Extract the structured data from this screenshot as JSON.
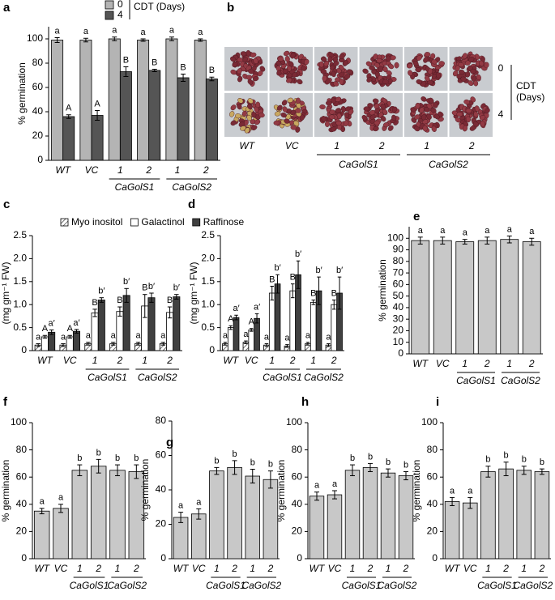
{
  "chart_data": [
    {
      "type": "bar",
      "panel": "a",
      "ylabel": "% germination",
      "legend_title": "CDT (Days)",
      "categories": [
        "WT",
        "VC",
        "1",
        "2",
        "1",
        "2"
      ],
      "groups": [
        "CaGolS1",
        "CaGolS2"
      ],
      "ylim": [
        0,
        110
      ],
      "yticks": [
        0,
        20,
        40,
        60,
        80,
        100
      ],
      "series": [
        {
          "name": "0",
          "color": "#b4b4b4",
          "values": [
            99,
            99,
            100,
            99,
            100,
            99
          ],
          "errors": [
            2,
            1.5,
            1.5,
            1,
            1.5,
            1
          ],
          "letters": [
            "a",
            "a",
            "a",
            "a",
            "a",
            "a"
          ]
        },
        {
          "name": "4",
          "color": "#555555",
          "values": [
            36,
            37,
            73,
            74,
            68,
            67
          ],
          "errors": [
            1.5,
            4,
            4,
            1,
            3,
            1.5
          ],
          "letters": [
            "A",
            "A",
            "B",
            "B",
            "B",
            "B"
          ]
        }
      ]
    },
    {
      "type": "bar",
      "panel": "c",
      "ylabel": "(mg gm⁻¹ FW)",
      "categories": [
        "WT",
        "VC",
        "1",
        "2",
        "1",
        "2"
      ],
      "groups": [
        "CaGolS1",
        "CaGolS2"
      ],
      "ylim": [
        0,
        2.5
      ],
      "yticks": [
        0,
        0.5,
        {
          "value": 1,
          "label": "1.0"
        },
        1.5,
        {
          "value": 2,
          "label": "2.0"
        },
        2.5
      ],
      "series": [
        {
          "name": "Myo inositol",
          "color": "#ffffff",
          "hatch": true,
          "values": [
            0.12,
            0.12,
            0.15,
            0.15,
            0.15,
            0.15
          ],
          "errors": [
            0.03,
            0.03,
            0.03,
            0.03,
            0.03,
            0.03
          ],
          "letters": [
            "a",
            "a",
            "a",
            "a",
            "a",
            "a"
          ]
        },
        {
          "name": "Galactinol",
          "color": "#ffffff",
          "values": [
            0.3,
            0.3,
            0.82,
            0.85,
            0.97,
            0.83
          ],
          "errors": [
            0.03,
            0.03,
            0.08,
            0.1,
            0.25,
            0.12
          ],
          "letters": [
            "A",
            "A",
            "B",
            "B",
            "B",
            "B"
          ]
        },
        {
          "name": "Raffinose",
          "color": "#404040",
          "values": [
            0.4,
            0.42,
            1.1,
            1.2,
            1.15,
            1.17
          ],
          "errors": [
            0.05,
            0.04,
            0.05,
            0.15,
            0.1,
            0.05
          ],
          "letters": [
            "a′",
            "a′",
            "b′",
            "b′",
            "b′",
            "b′"
          ]
        }
      ]
    },
    {
      "type": "bar",
      "panel": "d",
      "ylabel": "(mg gm⁻¹ FW)",
      "categories": [
        "WT",
        "VC",
        "1",
        "2",
        "1",
        "2"
      ],
      "groups": [
        "CaGolS1",
        "CaGolS2"
      ],
      "ylim": [
        0,
        2.5
      ],
      "yticks": [
        0,
        0.5,
        {
          "value": 1,
          "label": "1.0"
        },
        1.5,
        {
          "value": 2,
          "label": "2.0"
        },
        2.5
      ],
      "series": [
        {
          "name": "Myo inositol",
          "color": "#ffffff",
          "hatch": true,
          "values": [
            0.15,
            0.18,
            0.12,
            0.1,
            0.15,
            0.12
          ],
          "errors": [
            0.03,
            0.03,
            0.03,
            0.03,
            0.03,
            0.03
          ],
          "letters": [
            "a",
            "a",
            "a",
            "a",
            "a",
            "a"
          ]
        },
        {
          "name": "Galactinol",
          "color": "#ffffff",
          "values": [
            0.5,
            0.45,
            1.25,
            1.3,
            1.05,
            1.0
          ],
          "errors": [
            0.04,
            0.03,
            0.15,
            0.15,
            0.05,
            0.1
          ],
          "letters": [
            "A",
            "A",
            "B",
            "B",
            "B",
            "B"
          ]
        },
        {
          "name": "Raffinose",
          "color": "#404040",
          "values": [
            0.72,
            0.7,
            1.45,
            1.65,
            1.3,
            1.25
          ],
          "errors": [
            0.05,
            0.1,
            0.2,
            0.3,
            0.3,
            0.35
          ],
          "letters": [
            "a′",
            "a′",
            "b′",
            "b′",
            "b′",
            "b′"
          ]
        }
      ]
    },
    {
      "type": "bar",
      "panel": "e",
      "ylabel": "% germination",
      "categories": [
        "WT",
        "VC",
        "1",
        "2",
        "1",
        "2"
      ],
      "groups": [
        "CaGolS1",
        "CaGolS2"
      ],
      "ylim": [
        0,
        110
      ],
      "yticks": [
        0,
        10,
        20,
        30,
        40,
        50,
        60,
        70,
        80,
        90,
        100
      ],
      "color": "#c8c8c8",
      "values": [
        98,
        98,
        97,
        98,
        99,
        97
      ],
      "errors": [
        3,
        3,
        2,
        3,
        3,
        3
      ],
      "letters": [
        "a",
        "a",
        "a",
        "a",
        "a",
        "a"
      ]
    },
    {
      "type": "bar",
      "panel": "f",
      "ylabel": "% germination",
      "categories": [
        "WT",
        "VC",
        "1",
        "2",
        "1",
        "2"
      ],
      "groups": [
        "CaGolS1",
        "CaGolS2"
      ],
      "ylim": [
        0,
        100
      ],
      "yticks": [
        0,
        20,
        40,
        60,
        80,
        100
      ],
      "color": "#c8c8c8",
      "values": [
        35,
        37,
        65,
        68,
        65,
        64
      ],
      "errors": [
        2,
        3,
        4,
        5,
        4,
        5
      ],
      "letters": [
        "a",
        "a",
        "b",
        "b",
        "b",
        "b"
      ]
    },
    {
      "type": "bar",
      "panel": "g",
      "ylabel": "% germination",
      "categories": [
        "WT",
        "VC",
        "1",
        "2",
        "1",
        "2"
      ],
      "groups": [
        "CaGolS1",
        "CaGolS2"
      ],
      "ylim": [
        0,
        80
      ],
      "yticks": [
        0,
        20,
        40,
        60,
        80
      ],
      "color": "#c8c8c8",
      "values": [
        24,
        26,
        51,
        53,
        48,
        46
      ],
      "errors": [
        3,
        3,
        2,
        4,
        4,
        5
      ],
      "letters": [
        "a",
        "a",
        "b",
        "b",
        "b",
        "b"
      ]
    },
    {
      "type": "bar",
      "panel": "h",
      "ylabel": "% germination",
      "categories": [
        "WT",
        "VC",
        "1",
        "2",
        "1",
        "2"
      ],
      "groups": [
        "CaGolS1",
        "CaGolS2"
      ],
      "ylim": [
        0,
        100
      ],
      "yticks": [
        0,
        20,
        40,
        60,
        80,
        100
      ],
      "color": "#c8c8c8",
      "values": [
        46,
        47,
        65,
        67,
        63,
        61
      ],
      "errors": [
        3,
        3,
        4,
        3,
        3,
        3
      ],
      "letters": [
        "a",
        "a",
        "b",
        "b",
        "b",
        "b"
      ]
    },
    {
      "type": "bar",
      "panel": "i",
      "ylabel": "% germination",
      "categories": [
        "WT",
        "VC",
        "1",
        "2",
        "1",
        "2"
      ],
      "groups": [
        "CaGolS1",
        "CaGolS2"
      ],
      "ylim": [
        0,
        100
      ],
      "yticks": [
        0,
        20,
        40,
        60,
        80,
        100
      ],
      "color": "#c8c8c8",
      "values": [
        42,
        41,
        64,
        66,
        65,
        64
      ],
      "errors": [
        3,
        4,
        4,
        5,
        3,
        2
      ],
      "letters": [
        "a",
        "a",
        "b",
        "b",
        "b",
        "b"
      ]
    }
  ],
  "photo_panel": {
    "panel": "b",
    "columns": [
      "WT",
      "VC",
      "1",
      "2",
      "1",
      "2"
    ],
    "groups": [
      "CaGolS1",
      "CaGolS2"
    ],
    "rows": [
      "0",
      "4"
    ],
    "row_title": [
      "CDT",
      "(Days)"
    ]
  }
}
